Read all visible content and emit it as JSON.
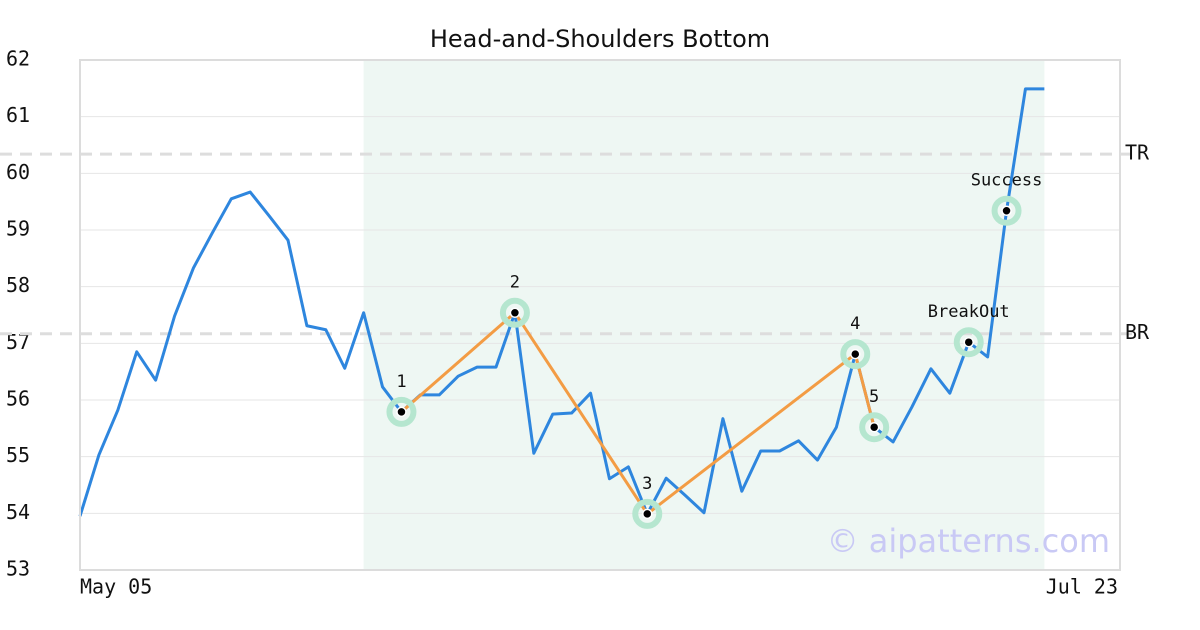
{
  "chart_data": {
    "type": "line",
    "title": "Head-and-Shoulders Bottom",
    "watermark": "© aipatterns.com",
    "x": [
      0,
      1,
      2,
      3,
      4,
      5,
      6,
      7,
      8,
      9,
      10,
      11,
      12,
      13,
      14,
      15,
      16,
      17,
      18,
      19,
      20,
      21,
      22,
      23,
      24,
      25,
      26,
      27,
      28,
      29,
      30,
      31,
      32,
      33,
      34,
      35,
      36,
      37,
      38,
      39,
      40,
      41,
      42,
      43,
      44,
      45,
      46,
      47,
      48,
      49,
      50,
      51
    ],
    "values": [
      53.95,
      55.03,
      55.82,
      56.85,
      56.35,
      57.48,
      58.33,
      58.95,
      59.55,
      59.67,
      59.25,
      58.82,
      57.31,
      57.24,
      56.56,
      57.54,
      56.23,
      55.79,
      56.09,
      56.09,
      56.42,
      56.58,
      56.58,
      57.54,
      55.06,
      55.75,
      55.77,
      56.12,
      54.61,
      54.82,
      53.99,
      54.62,
      54.32,
      54.01,
      55.67,
      54.39,
      55.1,
      55.1,
      55.28,
      54.94,
      55.52,
      56.81,
      55.52,
      55.26,
      55.88,
      56.55,
      56.12,
      57.02,
      56.76,
      59.34,
      61.49,
      61.49
    ],
    "color": "#2e86de",
    "pattern_color": "#f39c44",
    "highlight_range": [
      15,
      51
    ],
    "highlight_color": "#eef7f3",
    "points": [
      {
        "x": 17,
        "y": 55.79,
        "label": "1"
      },
      {
        "x": 23,
        "y": 57.54,
        "label": "2"
      },
      {
        "x": 30,
        "y": 53.99,
        "label": "3"
      },
      {
        "x": 41,
        "y": 56.81,
        "label": "4"
      },
      {
        "x": 42,
        "y": 55.52,
        "label": "5"
      },
      {
        "x": 47,
        "y": 57.02,
        "label": "BreakOut"
      },
      {
        "x": 49,
        "y": 59.34,
        "label": "Success"
      }
    ],
    "pattern_points": 5,
    "levels": [
      {
        "label": "TR",
        "value": 60.34
      },
      {
        "label": "BR",
        "value": 57.17
      }
    ],
    "xlim": [
      0,
      55
    ],
    "xticks": [
      {
        "value": 0,
        "label": "May 05"
      },
      {
        "value": 55,
        "label": "Jul 23"
      }
    ],
    "ylim": [
      53,
      62
    ],
    "yticks": [
      53,
      54,
      55,
      56,
      57,
      58,
      59,
      60,
      61,
      62
    ],
    "grid": true
  }
}
